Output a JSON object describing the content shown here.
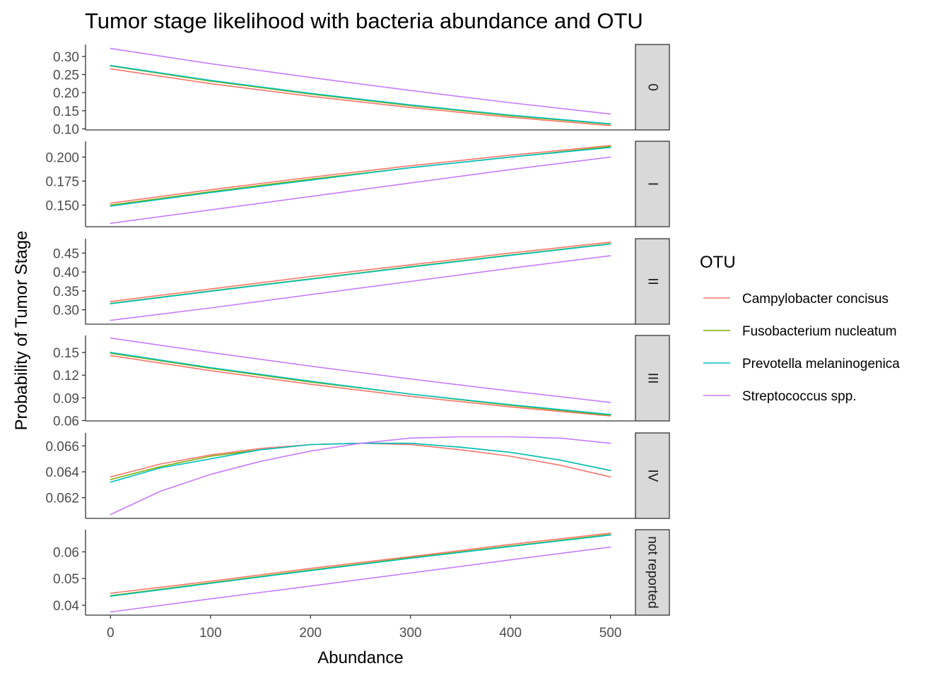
{
  "chart_data": {
    "type": "line",
    "title": "Tumor stage likelihood with bacteria abundance and OTU",
    "xlabel": "Abundance",
    "ylabel": "Probability of Tumor Stage",
    "xlim": [
      -25,
      525
    ],
    "x_ticks": [
      0,
      100,
      200,
      300,
      400,
      500
    ],
    "x_tick_labels": [
      "0",
      "100",
      "200",
      "300",
      "400",
      "500"
    ],
    "grid": false,
    "facet_strip_position": "right",
    "legend": {
      "title": "OTU",
      "position": "right",
      "entries": [
        {
          "name": "Campylobacter concisus",
          "color": "#F8766D"
        },
        {
          "name": "Fusobacterium nucleatum",
          "color": "#7CAE00"
        },
        {
          "name": "Prevotella melaninogenica",
          "color": "#00BFC4"
        },
        {
          "name": "Streptococcus spp.",
          "color": "#C77CFF"
        }
      ]
    },
    "facets": [
      {
        "label": "0",
        "ylim": [
          0.097,
          0.333
        ],
        "y_ticks": [
          0.1,
          0.15,
          0.2,
          0.25,
          0.3
        ],
        "y_tick_labels": [
          "0.10",
          "0.15",
          "0.20",
          "0.25",
          "0.30"
        ],
        "series": [
          {
            "name": "Campylobacter concisus",
            "x": [
              0,
              100,
              200,
              300,
              400,
              500
            ],
            "y": [
              0.266,
              0.225,
              0.19,
              0.159,
              0.132,
              0.109
            ]
          },
          {
            "name": "Fusobacterium nucleatum",
            "x": [
              0,
              100,
              200,
              300,
              400,
              500
            ],
            "y": [
              0.274,
              0.232,
              0.196,
              0.164,
              0.136,
              0.113
            ]
          },
          {
            "name": "Prevotella melaninogenica",
            "x": [
              0,
              100,
              200,
              300,
              400,
              500
            ],
            "y": [
              0.275,
              0.234,
              0.198,
              0.166,
              0.138,
              0.114
            ]
          },
          {
            "name": "Streptococcus spp.",
            "x": [
              0,
              100,
              200,
              300,
              400,
              500
            ],
            "y": [
              0.322,
              0.28,
              0.242,
              0.206,
              0.172,
              0.141
            ]
          }
        ]
      },
      {
        "label": "I",
        "ylim": [
          0.1275,
          0.2165
        ],
        "y_ticks": [
          0.15,
          0.175,
          0.2
        ],
        "y_tick_labels": [
          "0.150",
          "0.175",
          "0.200"
        ],
        "series": [
          {
            "name": "Campylobacter concisus",
            "x": [
              0,
              100,
              200,
              300,
              400,
              500
            ],
            "y": [
              0.152,
              0.166,
              0.179,
              0.191,
              0.202,
              0.212
            ]
          },
          {
            "name": "Fusobacterium nucleatum",
            "x": [
              0,
              100,
              200,
              300,
              400,
              500
            ],
            "y": [
              0.15,
              0.164,
              0.177,
              0.189,
              0.2,
              0.211
            ]
          },
          {
            "name": "Prevotella melaninogenica",
            "x": [
              0,
              100,
              200,
              300,
              400,
              500
            ],
            "y": [
              0.149,
              0.163,
              0.176,
              0.189,
              0.2,
              0.21
            ]
          },
          {
            "name": "Streptococcus spp.",
            "x": [
              0,
              100,
              200,
              300,
              400,
              500
            ],
            "y": [
              0.131,
              0.145,
              0.159,
              0.173,
              0.187,
              0.2
            ]
          }
        ]
      },
      {
        "label": "II",
        "ylim": [
          0.262,
          0.488
        ],
        "y_ticks": [
          0.3,
          0.35,
          0.4,
          0.45
        ],
        "y_tick_labels": [
          "0.30",
          "0.35",
          "0.40",
          "0.45"
        ],
        "series": [
          {
            "name": "Campylobacter concisus",
            "x": [
              0,
              100,
              200,
              300,
              400,
              500
            ],
            "y": [
              0.322,
              0.355,
              0.388,
              0.419,
              0.45,
              0.479
            ]
          },
          {
            "name": "Fusobacterium nucleatum",
            "x": [
              0,
              100,
              200,
              300,
              400,
              500
            ],
            "y": [
              0.317,
              0.35,
              0.382,
              0.414,
              0.445,
              0.475
            ]
          },
          {
            "name": "Prevotella melaninogenica",
            "x": [
              0,
              100,
              200,
              300,
              400,
              500
            ],
            "y": [
              0.316,
              0.349,
              0.381,
              0.413,
              0.444,
              0.474
            ]
          },
          {
            "name": "Streptococcus spp.",
            "x": [
              0,
              100,
              200,
              300,
              400,
              500
            ],
            "y": [
              0.272,
              0.305,
              0.34,
              0.375,
              0.41,
              0.443
            ]
          }
        ]
      },
      {
        "label": "III",
        "ylim": [
          0.0595,
          0.1725
        ],
        "y_ticks": [
          0.06,
          0.09,
          0.12,
          0.15
        ],
        "y_tick_labels": [
          "0.06",
          "0.09",
          "0.12",
          "0.15"
        ],
        "series": [
          {
            "name": "Campylobacter concisus",
            "x": [
              0,
              100,
              200,
              300,
              400,
              500
            ],
            "y": [
              0.146,
              0.126,
              0.108,
              0.092,
              0.078,
              0.066
            ]
          },
          {
            "name": "Fusobacterium nucleatum",
            "x": [
              0,
              100,
              200,
              300,
              400,
              500
            ],
            "y": [
              0.149,
              0.129,
              0.111,
              0.095,
              0.08,
              0.067
            ]
          },
          {
            "name": "Prevotella melaninogenica",
            "x": [
              0,
              100,
              200,
              300,
              400,
              500
            ],
            "y": [
              0.15,
              0.13,
              0.112,
              0.095,
              0.081,
              0.068
            ]
          },
          {
            "name": "Streptococcus spp.",
            "x": [
              0,
              100,
              200,
              300,
              400,
              500
            ],
            "y": [
              0.169,
              0.15,
              0.132,
              0.115,
              0.099,
              0.084
            ]
          }
        ]
      },
      {
        "label": "IV",
        "ylim": [
          0.0604,
          0.067
        ],
        "y_ticks": [
          0.062,
          0.064,
          0.066
        ],
        "y_tick_labels": [
          "0.062",
          "0.064",
          "0.066"
        ],
        "series": [
          {
            "name": "Campylobacter concisus",
            "x": [
              0,
              50,
              100,
              150,
              200,
              250,
              300,
              350,
              400,
              450,
              500
            ],
            "y": [
              0.0636,
              0.0646,
              0.0653,
              0.0658,
              0.0661,
              0.0662,
              0.0661,
              0.0657,
              0.0652,
              0.0645,
              0.0636
            ]
          },
          {
            "name": "Fusobacterium nucleatum",
            "x": [
              0,
              50,
              100,
              150,
              200,
              250,
              300,
              350,
              400,
              450,
              500
            ],
            "y": [
              0.0634,
              0.0644,
              0.0652,
              0.0657,
              0.0661,
              0.0662,
              0.0662,
              0.0659,
              0.0655,
              0.0649,
              0.0641
            ]
          },
          {
            "name": "Prevotella melaninogenica",
            "x": [
              0,
              50,
              100,
              150,
              200,
              250,
              300,
              350,
              400,
              450,
              500
            ],
            "y": [
              0.0632,
              0.0643,
              0.065,
              0.0657,
              0.0661,
              0.0662,
              0.0662,
              0.0659,
              0.0655,
              0.0649,
              0.0641
            ]
          },
          {
            "name": "Streptococcus spp.",
            "x": [
              0,
              50,
              100,
              150,
              200,
              250,
              300,
              350,
              400,
              450,
              500
            ],
            "y": [
              0.0607,
              0.0625,
              0.0638,
              0.0648,
              0.0656,
              0.0662,
              0.0666,
              0.0667,
              0.0667,
              0.0666,
              0.0662
            ]
          }
        ]
      },
      {
        "label": "not reported",
        "ylim": [
          0.0363,
          0.0683
        ],
        "y_ticks": [
          0.04,
          0.05,
          0.06
        ],
        "y_tick_labels": [
          "0.04",
          "0.05",
          "0.06"
        ],
        "series": [
          {
            "name": "Campylobacter concisus",
            "x": [
              0,
              100,
              200,
              300,
              400,
              500
            ],
            "y": [
              0.0445,
              0.049,
              0.0538,
              0.0582,
              0.0628,
              0.067
            ]
          },
          {
            "name": "Fusobacterium nucleatum",
            "x": [
              0,
              100,
              200,
              300,
              400,
              500
            ],
            "y": [
              0.0436,
              0.0484,
              0.0532,
              0.0578,
              0.0622,
              0.0665
            ]
          },
          {
            "name": "Prevotella melaninogenica",
            "x": [
              0,
              100,
              200,
              300,
              400,
              500
            ],
            "y": [
              0.0434,
              0.0482,
              0.053,
              0.0576,
              0.062,
              0.0663
            ]
          },
          {
            "name": "Streptococcus spp.",
            "x": [
              0,
              100,
              200,
              300,
              400,
              500
            ],
            "y": [
              0.0375,
              0.0424,
              0.0472,
              0.0521,
              0.057,
              0.0618
            ]
          }
        ]
      }
    ]
  }
}
